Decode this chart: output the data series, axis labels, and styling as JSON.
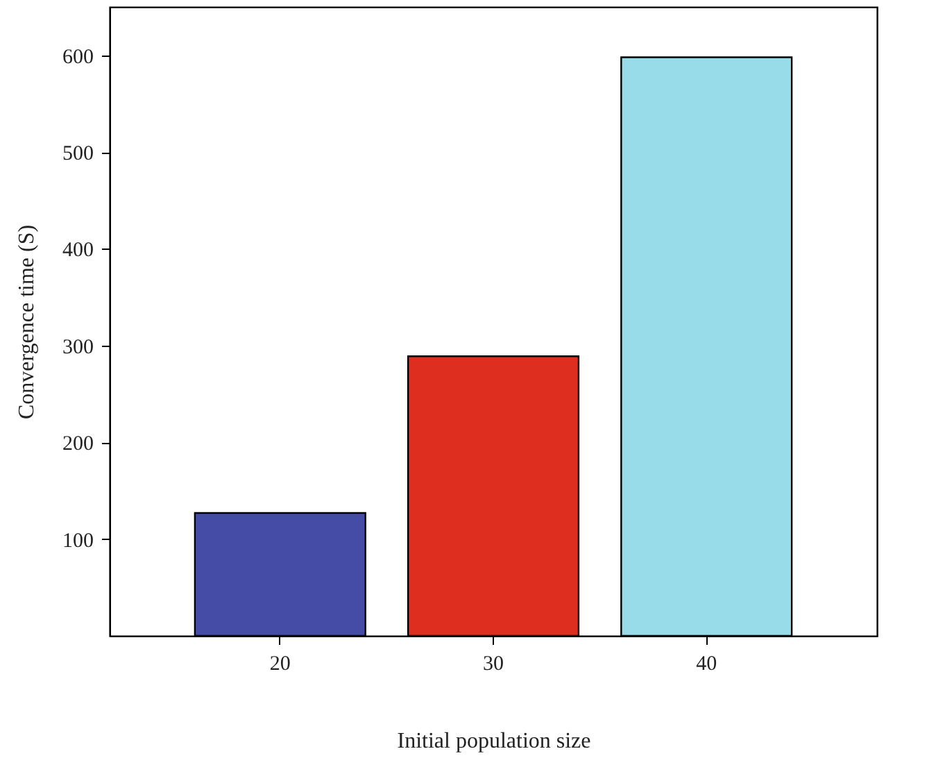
{
  "chart_data": {
    "type": "bar",
    "xlabel": "Initial population size",
    "ylabel": "Convergence time (S)",
    "categories": [
      "20",
      "30",
      "40"
    ],
    "values": [
      127,
      289,
      598
    ],
    "colors": [
      "#454ca6",
      "#de2e1f",
      "#99dce9"
    ],
    "ylim": [
      0,
      650
    ],
    "yticks": [
      100,
      200,
      300,
      400,
      500,
      600
    ],
    "grid": false,
    "legend": false
  }
}
